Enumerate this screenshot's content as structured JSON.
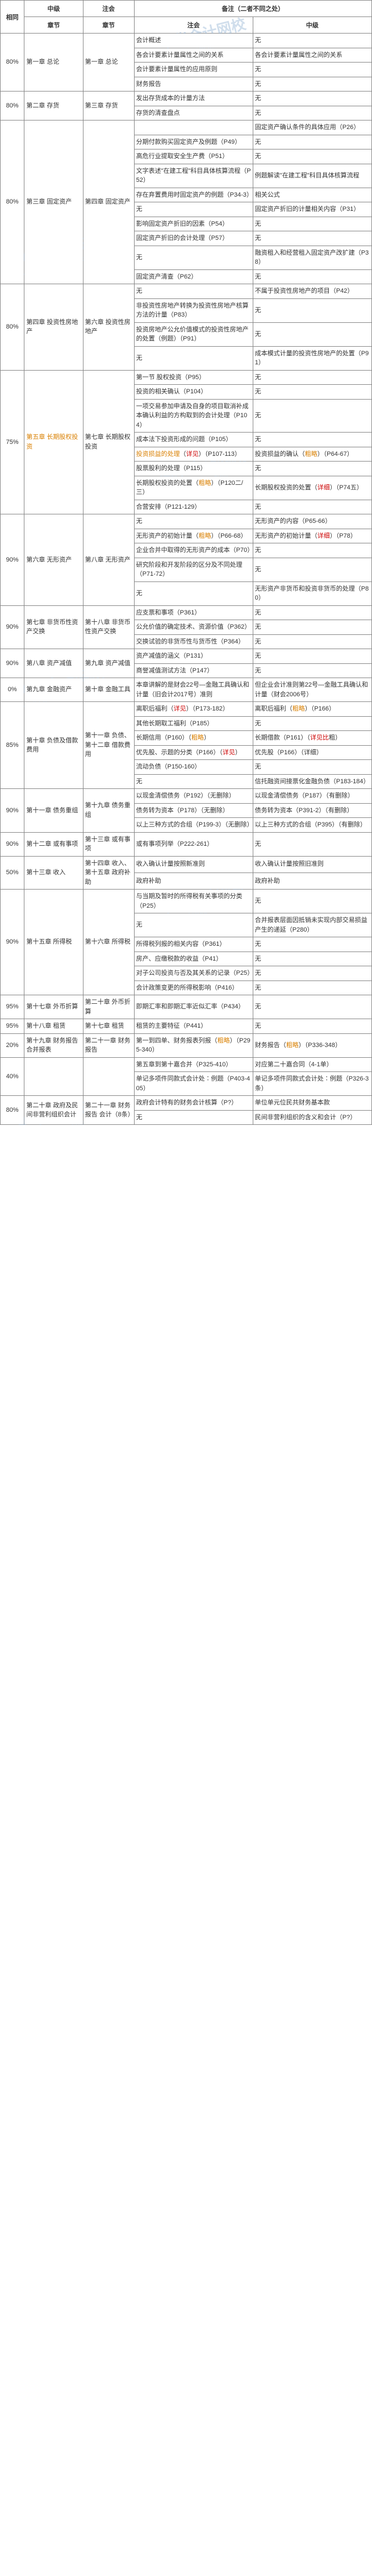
{
  "watermark": {
    "main": "中华会计网校",
    "sub": "www.chinaacc.com"
  },
  "head": {
    "c1": "相同",
    "c2": "中级",
    "c3": "注会",
    "c4": "备注（二者不同之处）",
    "c5": "注会",
    "c6": "中级"
  },
  "rows": [
    {
      "p": "80%",
      "ch": "第一章 总论",
      "sec": "第一章 总论",
      "cells": [
        [
          "会计概述",
          "无"
        ],
        [
          "各会计要素计量属性之间的关系",
          "各会计要素计量属性之间的关系"
        ],
        [
          "会计要素计量属性的应用原则",
          "无"
        ],
        [
          "财务报告",
          "无"
        ]
      ]
    },
    {
      "p": "80%",
      "ch": "第二章 存货",
      "sec": "第三章 存货",
      "cells": [
        [
          "发出存货成本的计量方法",
          "无"
        ],
        [
          "存货的清查盘点",
          "无"
        ]
      ]
    },
    {
      "p": "80%",
      "ch": "第三章 固定资产",
      "sec": "第四章 固定资产",
      "cells": [
        [
          "",
          "固定资产确认条件的具体应用（P26）"
        ],
        [
          "分期付款购买固定资产及例题（P49）",
          "无"
        ],
        [
          "高危行业提取安全生产费（P51）",
          "无"
        ],
        [
          "文字表述\"在建工程\"科目具体核算流程（P52）",
          "例题解读\"在建工程\"科目具体核算流程"
        ],
        [
          "存在弃置费用时固定资产的例题（P34-3）",
          "相关公式"
        ],
        [
          "无",
          "固定资产折旧的计量相关内容（P31）"
        ],
        [
          "影响固定资产折旧的因素（P54）",
          "无"
        ],
        [
          "固定资产折旧的会计处理（P57）",
          "无"
        ],
        [
          "无",
          "融资租入和经营租入固定资产改扩建（P38）"
        ],
        [
          "固定资产清查（P62）",
          "无"
        ]
      ]
    },
    {
      "p": "80%",
      "ch": "第四章 投资性房地产",
      "sec": "第六章 投资性房地产",
      "cells": [
        [
          "无",
          "不属于投资性房地产的项目（P42）"
        ],
        [
          "非投资性房地产转换为投资性房地产核算方法的计量（P83）",
          "无"
        ],
        [
          "投资房地产公允价值模式的投资性房地产的处置（例题）（P91）",
          "无"
        ],
        [
          "无",
          "成本模式计量的投资性房地产的处置（P91）"
        ]
      ]
    },
    {
      "p": "75%",
      "ch": "<span class='highlight'>第五章 长期股权投资</span>",
      "sec": "第七章 长期股权投资",
      "cells": [
        [
          "第一节 股权投资（P95）",
          "无"
        ],
        [
          "投资的相关确认（P104）",
          "无"
        ],
        [
          "一项交易参加申请及自身的项目取消补成本确认利益的方构取到的会计处理（P104）",
          "无"
        ],
        [
          "成本法下投资形成的问题（P105）",
          "无"
        ],
        [
          "<span class='highlight'>投资损益的处理</span>（<span class='red'>详见</span>）（P107-113）",
          "投资损益的确认（<span class='highlight'>粗略</span>）（P64-67）"
        ],
        [
          "股票股利的处理（P115）",
          "无"
        ],
        [
          "长期股权投资的处置（<span class='highlight'>粗略</span>）（P120二/三）",
          "长期股权投资的处置（<span class='red'>详细</span>）（P74五）"
        ],
        [
          "合营安排（P121-129）",
          "无"
        ]
      ]
    },
    {
      "p": "90%",
      "ch": "第六章 无形资产",
      "sec": "第八章 无形资产",
      "cells": [
        [
          "无",
          "无形资产的内容（P65-66）"
        ],
        [
          "无形资产的初始计量（<span class='highlight'>粗略</span>）（P66-68）",
          "无形资产的初始计量（<span class='red'>详细</span>）（P78）"
        ],
        [
          "企业合并中取得的无形资产的成本（P70）",
          "无"
        ],
        [
          "研究阶段和开发阶段的区分及不同处理（P71-72）",
          "无"
        ],
        [
          "无",
          "无形资产非货币和投资非货币的处理（P80）"
        ]
      ]
    },
    {
      "p": "90%",
      "ch": "第七章 非货币性资产交换",
      "sec": "第十八章 非货币性资产交换",
      "cells": [
        [
          "应支票和事项（P361）",
          "无"
        ],
        [
          "公允价值的确定技术、资源价值（P362）",
          "无"
        ],
        [
          "交换试验的非货币性与货币性（P364）",
          "无"
        ]
      ]
    },
    {
      "p": "90%",
      "ch": "第八章 资产减值",
      "sec": "第九章 资产减值",
      "cells": [
        [
          "资产减值的涵义（P131）",
          "无"
        ],
        [
          "商誉减值测试方法（P147）",
          "无"
        ]
      ]
    },
    {
      "p": "0%",
      "ch": "第九章 金融资产",
      "sec": "第十章 金融工具",
      "cells": [
        [
          "本章讲解的是财会22号—金融工具确认和计量（旧会计2017号）准则",
          "但企业会计准则第22号—金融工具确认和计量（财会2006号）"
        ]
      ]
    },
    {
      "p": "85%",
      "ch": "第十章 负债及借款费用",
      "sec": "第十一章 负债、第十二章 借款费用",
      "cells": [
        [
          "离职后福利（<span class='red'>详见</span>）（P173-182）",
          "离职后福利（<span class='highlight'>粗略</span>）（P166）"
        ],
        [
          "其他长期取工福利（P185）",
          "无"
        ],
        [
          "长期信用（P160）（<span class='highlight'>粗略</span>）",
          "长期借款（P161）（<span class='red'>详见比</span>粗）"
        ],
        [
          "优先股、示题的分类（P166）（<span class='red'>详见</span>）",
          "优先股（P166）（详细）"
        ],
        [
          "流动负债（P150-160）",
          "无"
        ],
        [
          "无",
          "信托融资间接票化金融负债（P183-184）"
        ]
      ]
    },
    {
      "p": "90%",
      "ch": "第十一章 债务重组",
      "sec": "第十九章 债务重组",
      "cells": [
        [
          "以现金清偿债务（P192）（无删除）",
          "以现金清偿债务（P187）（有删除）"
        ],
        [
          "债务转为资本（P178）（无删除）",
          "债务转为资本（P391-2）（有删除）"
        ],
        [
          "以上三种方式的合组（P199-3）（无删除）",
          "以上三种方式的合组（P395）（有删除）"
        ]
      ]
    },
    {
      "p": "90%",
      "ch": "第十二章 或有事项",
      "sec": "第十三章 或有事项",
      "cells": [
        [
          "或有事项列举（P222-261）",
          "无"
        ]
      ]
    },
    {
      "p": "50%",
      "ch": "第十三章 收入",
      "sec": "第十四章 收入、第十五章 政府补助",
      "cells": [
        [
          "收入确认计量按照新准则",
          "收入确认计量按照旧准则"
        ],
        [
          "政府补助",
          "政府补助"
        ]
      ]
    },
    {
      "p": "90%",
      "ch": "第十五章 所得税",
      "sec": "第十六章 所得税",
      "cells": [
        [
          "与当期及暂时的所得税有关事项的分类（P25）",
          "无"
        ],
        [
          "无",
          "合并报表层面因抵销未实现内部交易损益产生的递延（P280）"
        ],
        [
          "所得税列报的相关内容（P361）",
          "无"
        ],
        [
          "房产、应缴税款的收益（P41）",
          "无"
        ],
        [
          "对子公司投资与否及其关系的记录（P25）",
          "无"
        ],
        [
          "会计政策变更的所得税影响（P416）",
          "无"
        ]
      ]
    },
    {
      "p": "95%",
      "ch": "第十七章 外币折算",
      "sec": "第二十章 外币折算",
      "cells": [
        [
          "即期汇率和即期汇率近似汇率（P434）",
          "无"
        ]
      ]
    },
    {
      "p": "95%",
      "ch": "第十八章 租赁",
      "sec": "第十七章 租赁",
      "cells": [
        [
          "租赁的主要特征（P441）",
          "无"
        ]
      ]
    },
    {
      "p": "20%",
      "ch": "第十九章 财务报告合并报表",
      "sec": "第二十一章 财务报告",
      "cells": [
        [
          "第一到四单、财务报表列报（<span class='highlight'>粗略</span>）（P295-340）",
          "财务报告（<span class='highlight'>粗略</span>）（P336-348）"
        ]
      ]
    },
    {
      "p": "40%",
      "ch": "",
      "sec": "",
      "cells": [
        [
          "第五章到第十嘉合并（P325-410）",
          "对应第二十嘉合同（4-1单）"
        ],
        [
          "单记多项件同款式会计处∶例题（P403-405）",
          "单记多项件同款式会计处∶例题（P326-3条）"
        ]
      ]
    },
    {
      "p": "80%",
      "ch": "第二十章 政府及民间非营利组织会计",
      "sec": "第二十一章 财务报告 会计（8条）",
      "cells": [
        [
          "政府会计特有的财务会计核算（P?）",
          "单位单元位民共财务基本款"
        ],
        [
          "无",
          "民间非营利组织的含义和会计（P?）"
        ]
      ]
    }
  ]
}
